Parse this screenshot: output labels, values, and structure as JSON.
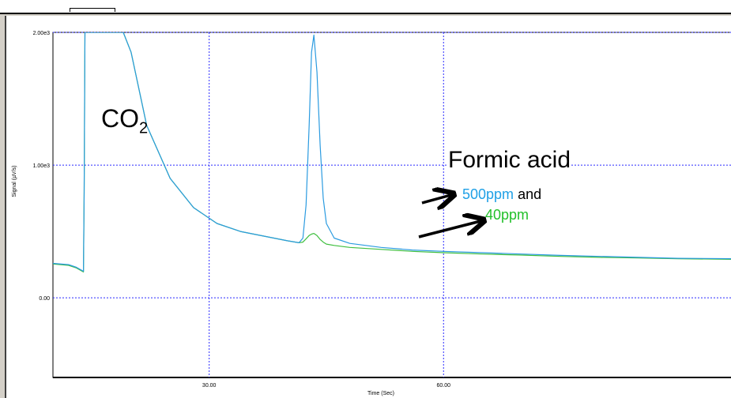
{
  "app": {
    "accent_color": "#000000"
  },
  "chart_data": {
    "type": "line",
    "title": "",
    "xlabel": "Time (Sec)",
    "ylabel": "Signal (µV/s)",
    "xlim": [
      10.0,
      97.0
    ],
    "ylim": [
      -600,
      2000
    ],
    "x_ticks": [
      {
        "value": 30.0,
        "label": "30.00"
      },
      {
        "value": 60.0,
        "label": "60.00"
      }
    ],
    "y_ticks": [
      {
        "value": 2000,
        "label": "2.00e3"
      },
      {
        "value": 1000,
        "label": "1.00e3"
      },
      {
        "value": 0,
        "label": "0.00"
      }
    ],
    "grid": true,
    "grid_style": "dotted-blue",
    "series": [
      {
        "color": "#2b9be0",
        "x": [
          10.0,
          12.0,
          13.0,
          13.9,
          14.0,
          14.1,
          16.0,
          18.0,
          19.0,
          20.0,
          22.0,
          25.0,
          28.0,
          31.0,
          34.0,
          37.0,
          40.0,
          41.5,
          42.0,
          42.4,
          42.8,
          43.1,
          43.4,
          43.8,
          44.2,
          44.6,
          45.0,
          46.0,
          48.0,
          52.0,
          56.0,
          60.0,
          65.0,
          70.0,
          75.0,
          80.0,
          85.0,
          90.0,
          97.0
        ],
        "y": [
          260,
          250,
          230,
          200,
          800,
          2000,
          2000,
          2000,
          2000,
          1850,
          1300,
          900,
          680,
          560,
          500,
          465,
          430,
          415,
          450,
          700,
          1300,
          1850,
          1980,
          1700,
          1150,
          750,
          560,
          450,
          410,
          380,
          360,
          350,
          340,
          330,
          320,
          312,
          305,
          298,
          295
        ]
      },
      {
        "color": "#3fbf3f",
        "x": [
          10.0,
          12.0,
          13.0,
          13.9,
          14.0,
          14.1,
          16.0,
          18.0,
          19.0,
          20.0,
          22.0,
          25.0,
          28.0,
          31.0,
          34.0,
          37.0,
          40.0,
          41.5,
          42.0,
          42.4,
          42.8,
          43.1,
          43.4,
          43.8,
          44.2,
          44.6,
          45.0,
          46.0,
          48.0,
          52.0,
          56.0,
          60.0,
          65.0,
          70.0,
          75.0,
          80.0,
          85.0,
          90.0,
          97.0
        ],
        "y": [
          255,
          245,
          225,
          195,
          800,
          2000,
          2000,
          2000,
          2000,
          1850,
          1300,
          900,
          680,
          560,
          500,
          465,
          430,
          415,
          420,
          445,
          470,
          480,
          485,
          470,
          440,
          420,
          405,
          395,
          380,
          365,
          350,
          340,
          330,
          322,
          312,
          305,
          300,
          295,
          290
        ]
      }
    ],
    "annotations": [
      {
        "text": "CO",
        "subscript": "2",
        "color": "#000000"
      },
      {
        "text": "Formic acid",
        "color": "#000000"
      },
      {
        "text": "500ppm",
        "color": "#1fa0e6"
      },
      {
        "text": "and",
        "color": "#000000"
      },
      {
        "text": "40ppm",
        "color": "#22c02a"
      }
    ],
    "arrows": [
      {
        "label": "500ppm",
        "color": "#000000"
      },
      {
        "label": "40ppm",
        "color": "#000000"
      }
    ]
  }
}
